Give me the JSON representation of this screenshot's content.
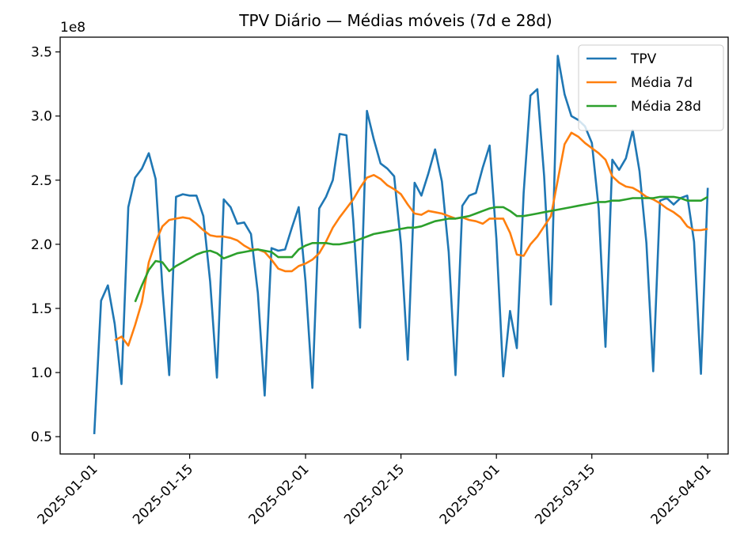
{
  "chart_data": {
    "type": "line",
    "title": "TPV Diário — Médias móveis (7d e 28d)",
    "xlabel": "",
    "ylabel": "",
    "y_offset_label": "1e8",
    "xlim": [
      "2024-12-27",
      "2025-04-04"
    ],
    "ylim": [
      0.365,
      3.615
    ],
    "x_ticks": [
      "2025-01-01",
      "2025-01-15",
      "2025-02-01",
      "2025-02-15",
      "2025-03-01",
      "2025-03-15",
      "2025-04-01"
    ],
    "y_ticks": [
      0.5,
      1.0,
      1.5,
      2.0,
      2.5,
      3.0,
      3.5
    ],
    "y_tick_labels": [
      "0.5",
      "1.0",
      "1.5",
      "2.0",
      "2.5",
      "3.0",
      "3.5"
    ],
    "legend_position": "top-right",
    "grid": false,
    "start_date": "2025-01-01",
    "series": [
      {
        "name": "TPV",
        "color": "#1f77b4",
        "values": [
          0.52,
          1.56,
          1.68,
          1.38,
          0.91,
          2.29,
          2.52,
          2.59,
          2.71,
          2.51,
          1.66,
          0.98,
          2.37,
          2.39,
          2.38,
          2.38,
          2.22,
          1.71,
          0.96,
          2.35,
          2.29,
          2.16,
          2.17,
          2.08,
          1.62,
          0.82,
          1.97,
          1.95,
          1.96,
          2.13,
          2.29,
          1.71,
          0.88,
          2.28,
          2.37,
          2.5,
          2.86,
          2.85,
          2.19,
          1.35,
          3.04,
          2.82,
          2.63,
          2.59,
          2.53,
          2.0,
          1.1,
          2.48,
          2.38,
          2.55,
          2.74,
          2.49,
          1.94,
          0.98,
          2.3,
          2.38,
          2.4,
          2.6,
          2.77,
          2.04,
          0.97,
          1.48,
          1.19,
          2.4,
          3.16,
          3.21,
          2.53,
          1.53,
          3.47,
          3.17,
          3.0,
          2.97,
          2.92,
          2.79,
          2.28,
          1.2,
          2.66,
          2.58,
          2.67,
          2.89,
          2.57,
          2.01,
          1.01,
          2.34,
          2.36,
          2.31,
          2.36,
          2.38,
          2.02,
          0.99,
          2.44
        ]
      },
      {
        "name": "Média 7d",
        "color": "#ff7f0e",
        "values": [
          null,
          null,
          null,
          1.25,
          1.28,
          1.21,
          1.37,
          1.55,
          1.86,
          2.02,
          2.14,
          2.19,
          2.2,
          2.21,
          2.2,
          2.16,
          2.11,
          2.07,
          2.06,
          2.06,
          2.05,
          2.03,
          1.99,
          1.96,
          1.96,
          1.94,
          1.88,
          1.81,
          1.79,
          1.79,
          1.83,
          1.85,
          1.88,
          1.93,
          2.02,
          2.13,
          2.21,
          2.28,
          2.35,
          2.44,
          2.52,
          2.54,
          2.51,
          2.46,
          2.43,
          2.39,
          2.31,
          2.24,
          2.23,
          2.26,
          2.25,
          2.24,
          2.22,
          2.2,
          2.21,
          2.19,
          2.18,
          2.16,
          2.2,
          2.2,
          2.2,
          2.09,
          1.92,
          1.91,
          2.0,
          2.06,
          2.14,
          2.22,
          2.5,
          2.78,
          2.87,
          2.84,
          2.79,
          2.75,
          2.71,
          2.66,
          2.53,
          2.48,
          2.45,
          2.44,
          2.41,
          2.37,
          2.35,
          2.32,
          2.28,
          2.25,
          2.21,
          2.14,
          2.11,
          2.11,
          2.12
        ]
      },
      {
        "name": "Média 28d",
        "color": "#2ca02c",
        "values": [
          null,
          null,
          null,
          null,
          null,
          null,
          1.55,
          1.68,
          1.8,
          1.87,
          1.86,
          1.79,
          1.83,
          1.86,
          1.89,
          1.92,
          1.94,
          1.95,
          1.93,
          1.89,
          1.91,
          1.93,
          1.94,
          1.95,
          1.96,
          1.95,
          1.94,
          1.9,
          1.9,
          1.9,
          1.96,
          1.99,
          2.01,
          2.01,
          2.01,
          2.0,
          2.0,
          2.01,
          2.02,
          2.04,
          2.06,
          2.08,
          2.09,
          2.1,
          2.11,
          2.12,
          2.13,
          2.13,
          2.14,
          2.16,
          2.18,
          2.19,
          2.2,
          2.2,
          2.21,
          2.22,
          2.24,
          2.26,
          2.28,
          2.29,
          2.29,
          2.26,
          2.22,
          2.22,
          2.23,
          2.24,
          2.25,
          2.26,
          2.27,
          2.28,
          2.29,
          2.3,
          2.31,
          2.32,
          2.33,
          2.33,
          2.34,
          2.34,
          2.35,
          2.36,
          2.36,
          2.36,
          2.36,
          2.37,
          2.37,
          2.37,
          2.36,
          2.34,
          2.34,
          2.34,
          2.37
        ]
      }
    ]
  }
}
